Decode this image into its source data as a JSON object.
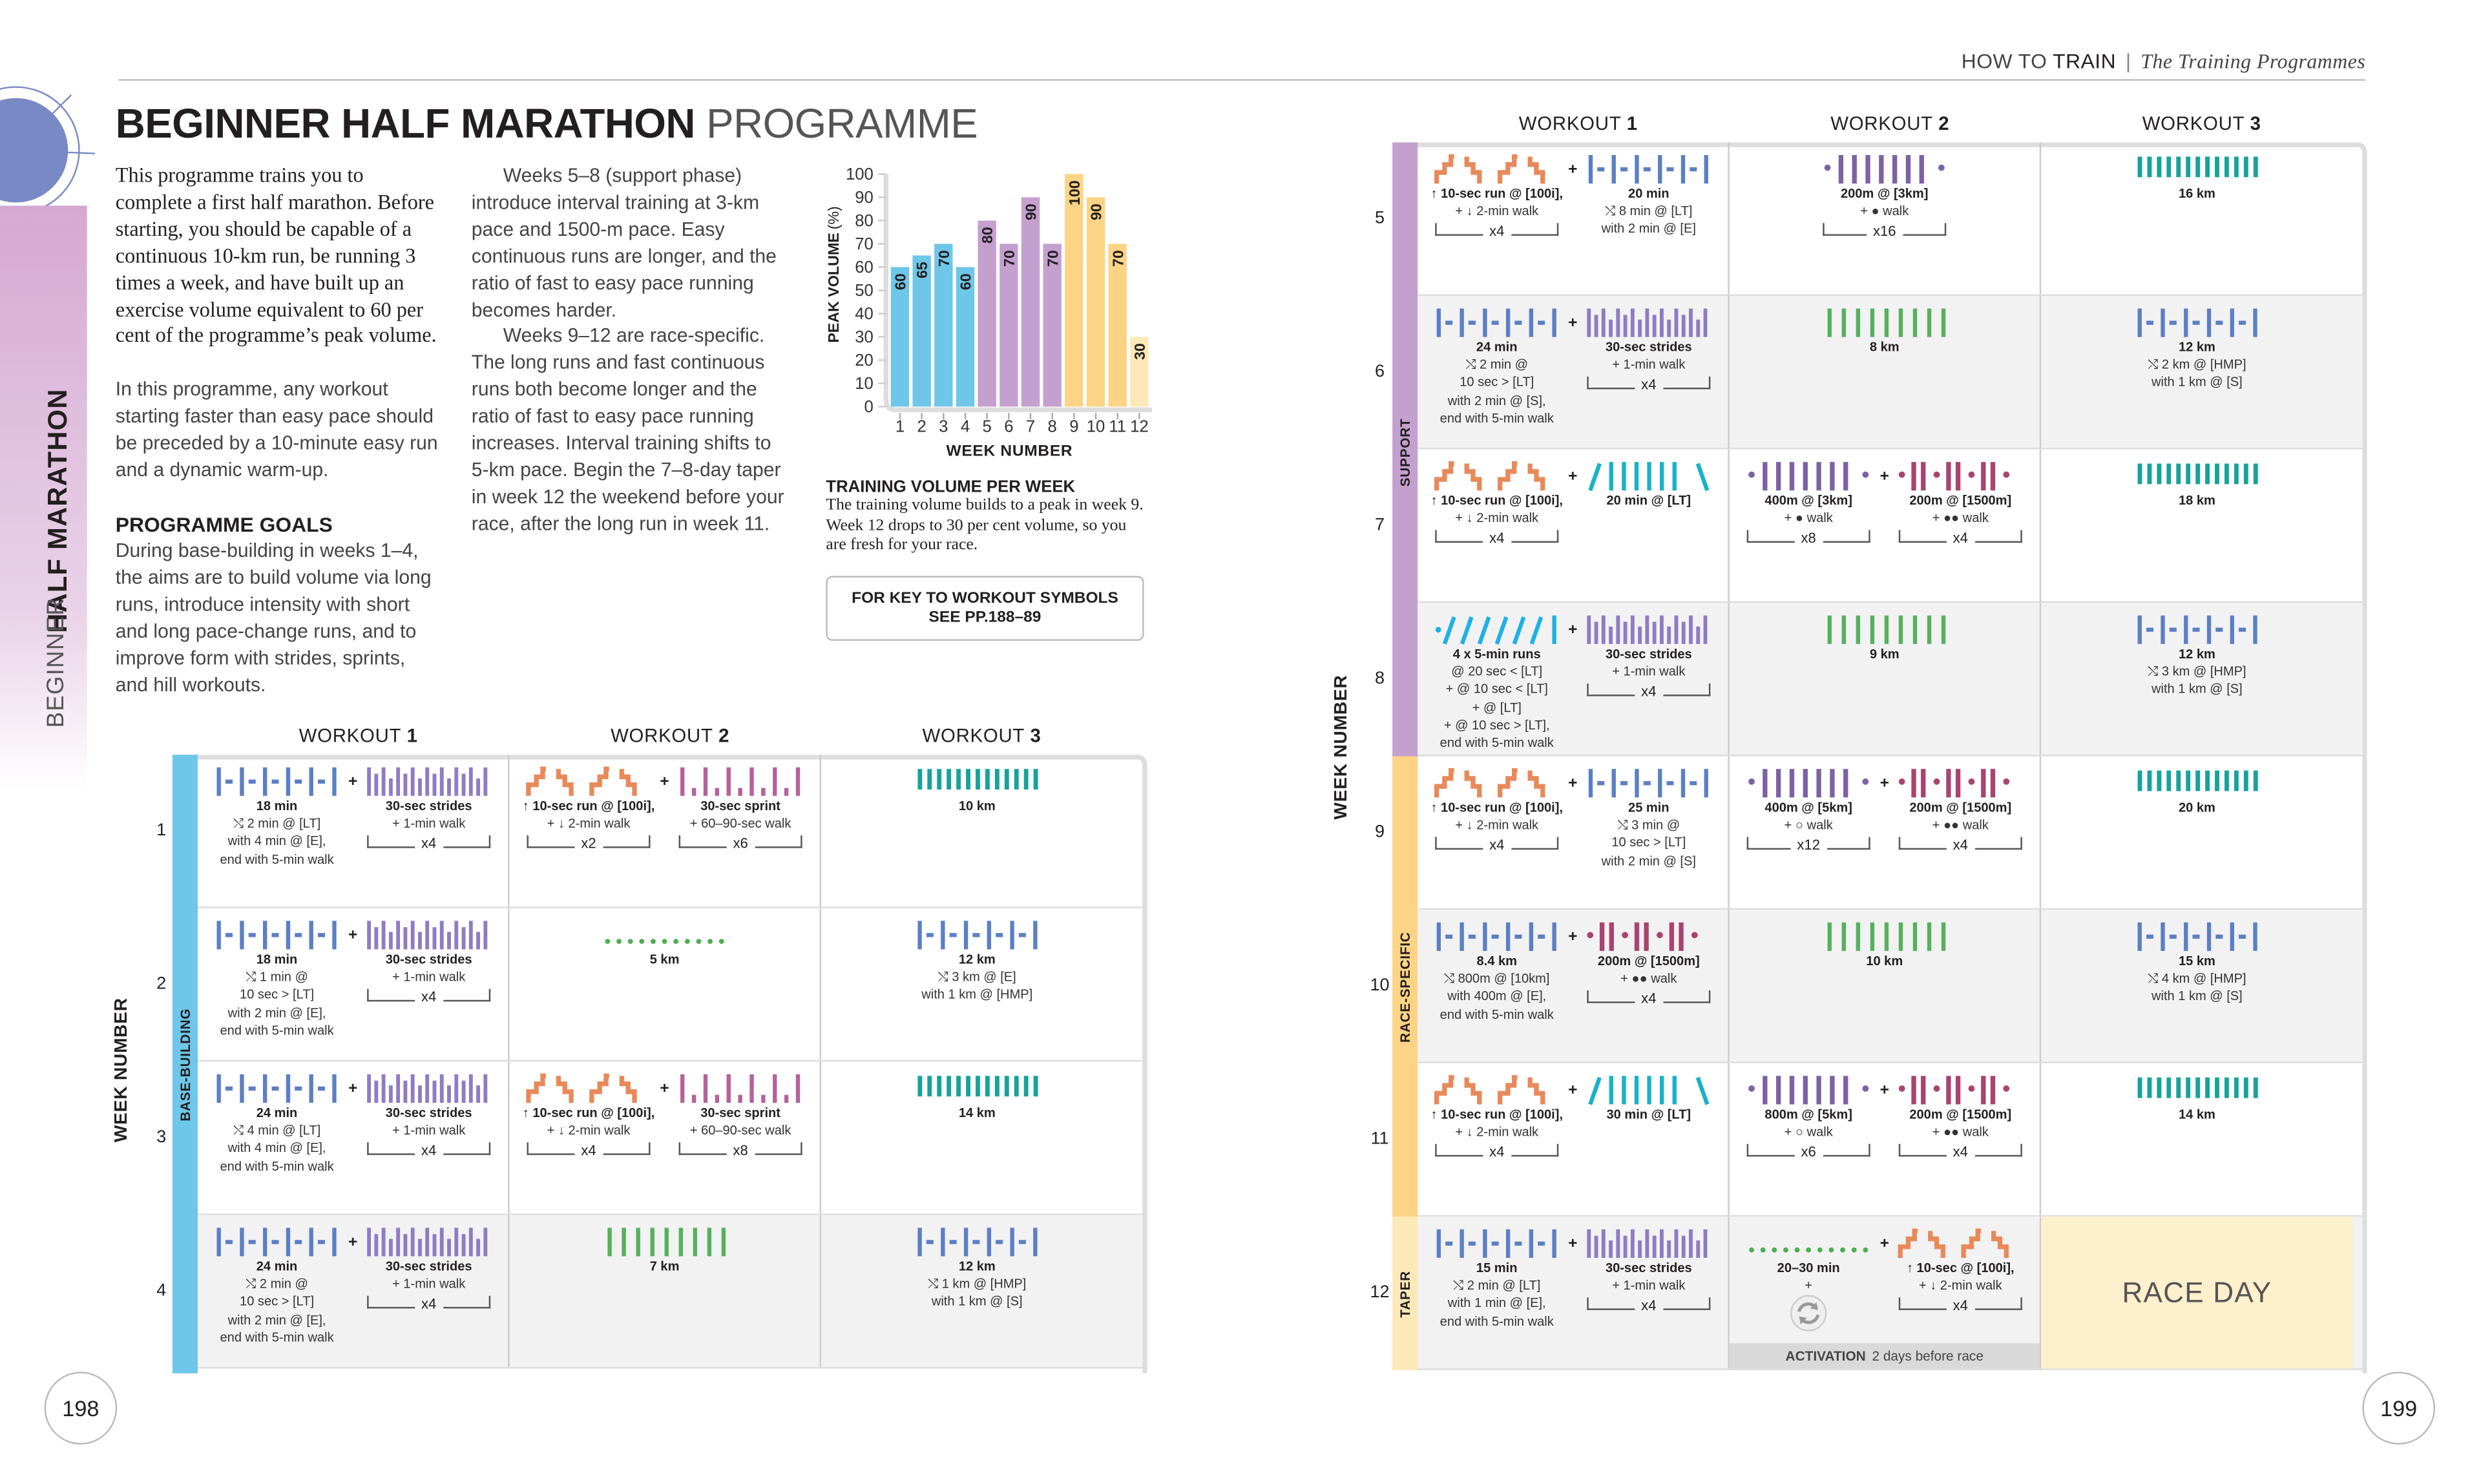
{
  "header": {
    "section": "HOW TO",
    "section_bold": "TRAIN",
    "subtitle": "The Training Programmes"
  },
  "side_tab": {
    "title": "HALF MARATHON",
    "level": "BEGINNER"
  },
  "title": {
    "bold": "BEGINNER HALF MARATHON",
    "light": "PROGRAMME"
  },
  "intro": {
    "lead": "This programme trains you to complete a first half marathon. Before starting, you should be capable of a continuous 10-km run, be running 3 times a week, and have built up an exercise volume equivalent to 60 per cent of the programme’s peak volume.",
    "warmup": "In this programme, any workout starting faster than easy pace should be preceded by a 10-minute easy run and a dynamic warm-up.",
    "goals_heading": "PROGRAMME GOALS",
    "goals_p1": "During base-building in weeks 1–4, the aims are to build volume via long runs, introduce intensity with short and long pace-change runs, and to improve form with strides, sprints, and hill workouts.",
    "goals_p2": "Weeks 5–8 (support phase) introduce interval training at 3-km pace and 1500-m pace. Easy continuous runs are longer, and the ratio of fast to easy pace running becomes harder.",
    "goals_p3": "Weeks 9–12 are race-specific. The long runs and fast continuous runs both become longer and the ratio of fast to easy pace running increases. Interval training shifts to 5-km pace. Begin the 7–8-day taper in week 12 the weekend before your race, after the long run in week 11."
  },
  "chart_data": {
    "type": "bar",
    "title": "",
    "xlabel": "WEEK NUMBER",
    "ylabel": "PEAK VOLUME",
    "ylabel_unit": "(%)",
    "ylim": [
      0,
      100
    ],
    "yticks": [
      0,
      10,
      20,
      30,
      40,
      50,
      60,
      70,
      80,
      90,
      100
    ],
    "categories": [
      "1",
      "2",
      "3",
      "4",
      "5",
      "6",
      "7",
      "8",
      "9",
      "10",
      "11",
      "12"
    ],
    "values": [
      60,
      65,
      70,
      60,
      80,
      70,
      90,
      70,
      100,
      90,
      70,
      30
    ],
    "bar_colors": [
      "#6ec6e8",
      "#6ec6e8",
      "#6ec6e8",
      "#6ec6e8",
      "#c4a0cf",
      "#c4a0cf",
      "#c4a0cf",
      "#c4a0cf",
      "#fdd485",
      "#fdd485",
      "#fdd485",
      "#fde9b8"
    ],
    "data_labels": true,
    "grid": false
  },
  "chart_caption": {
    "heading": "TRAINING VOLUME PER WEEK",
    "text": "The training volume builds to a peak in week 9. Week 12 drops to 30 per cent volume, so you are fresh for your race."
  },
  "key_box": {
    "line1": "FOR KEY TO WORKOUT SYMBOLS",
    "line2": "SEE PP.188–89"
  },
  "page_numbers": {
    "left": "198",
    "right": "199"
  },
  "colors": {
    "base": "#6ec6e8",
    "support": "#c4a0cf",
    "race": "#fdd485",
    "taper": "#fde9b8",
    "fartlek": "#5b7fc4",
    "strides": "#8e7cc3",
    "hills": "#e8895a",
    "sprints": "#b5619b",
    "easy": "#4caf50",
    "steady": "#56b05c",
    "long": "#16a39a",
    "intervals": "#7d62a3",
    "reps": "#a8446f",
    "tempo": "#17b2c9",
    "progression": "#1fb0e6"
  },
  "table_labels": {
    "workout": "WORKOUT",
    "week_number": "WEEK NUMBER"
  },
  "left_table": {
    "headers": [
      "1",
      "2",
      "3"
    ],
    "phases": [
      {
        "name": "BASE-BUILDING",
        "color": "#6ec6e8",
        "from": 1,
        "to": 4
      }
    ],
    "rows": [
      {
        "week": "1",
        "gray": false,
        "cells": [
          [
            {
              "icon": "fartlek",
              "lines": [
                "18 min",
                "⤭ 2 min @ [LT]",
                "with 4 min @ [E],",
                "end with 5-min walk"
              ]
            },
            {
              "icon": "strides",
              "lines": [
                "30-sec strides",
                "+ 1-min walk"
              ],
              "repeat": "x4"
            }
          ],
          [
            {
              "icon": "hills",
              "lines": [
                "↑ 10-sec run @ [100i],",
                "+ ↓ 2-min walk"
              ],
              "repeat": "x2"
            },
            {
              "icon": "sprints",
              "lines": [
                "30-sec sprint",
                "+ 60–90-sec walk"
              ],
              "repeat": "x6"
            }
          ],
          [
            {
              "icon": "long",
              "lines": [
                "10 km"
              ]
            }
          ]
        ]
      },
      {
        "week": "2",
        "gray": false,
        "cells": [
          [
            {
              "icon": "fartlek",
              "lines": [
                "18 min",
                "⤭ 1 min @",
                "10 sec > [LT]",
                "with 2 min @ [E],",
                "end with 5-min walk"
              ]
            },
            {
              "icon": "strides",
              "lines": [
                "30-sec strides",
                "+ 1-min walk"
              ],
              "repeat": "x4"
            }
          ],
          [
            {
              "icon": "easy",
              "lines": [
                "5 km"
              ]
            }
          ],
          [
            {
              "icon": "fartlek",
              "lines": [
                "12 km",
                "⤭ 3 km @ [E]",
                "with 1 km @ [HMP]"
              ]
            }
          ]
        ]
      },
      {
        "week": "3",
        "gray": false,
        "cells": [
          [
            {
              "icon": "fartlek",
              "lines": [
                "24 min",
                "⤭ 4 min @ [LT]",
                "with 4 min @ [E],",
                "end with 5-min walk"
              ]
            },
            {
              "icon": "strides",
              "lines": [
                "30-sec strides",
                "+ 1-min walk"
              ],
              "repeat": "x4"
            }
          ],
          [
            {
              "icon": "hills",
              "lines": [
                "↑ 10-sec run @ [100i],",
                "+ ↓ 2-min walk"
              ],
              "repeat": "x4"
            },
            {
              "icon": "sprints",
              "lines": [
                "30-sec sprint",
                "+ 60–90-sec walk"
              ],
              "repeat": "x8"
            }
          ],
          [
            {
              "icon": "long",
              "lines": [
                "14 km"
              ]
            }
          ]
        ]
      },
      {
        "week": "4",
        "gray": true,
        "cells": [
          [
            {
              "icon": "fartlek",
              "lines": [
                "24 min",
                "⤭ 2 min @",
                "10 sec > [LT]",
                "with 2 min @ [E],",
                "end with 5-min walk"
              ]
            },
            {
              "icon": "strides",
              "lines": [
                "30-sec strides",
                "+ 1-min walk"
              ],
              "repeat": "x4"
            }
          ],
          [
            {
              "icon": "steady",
              "lines": [
                "7 km"
              ]
            }
          ],
          [
            {
              "icon": "fartlek",
              "lines": [
                "12 km",
                "⤭ 1 km @ [HMP]",
                "with 1 km @ [S]"
              ]
            }
          ]
        ]
      }
    ]
  },
  "right_table": {
    "headers": [
      "1",
      "2",
      "3"
    ],
    "phases": [
      {
        "name": "SUPPORT",
        "color": "#c4a0cf",
        "from": 5,
        "to": 8
      },
      {
        "name": "RACE-SPECIFIC",
        "color": "#fdd485",
        "from": 9,
        "to": 11
      },
      {
        "name": "TAPER",
        "color": "#fde9b8",
        "from": 12,
        "to": 12
      }
    ],
    "rows": [
      {
        "week": "5",
        "gray": false,
        "cells": [
          [
            {
              "icon": "hills",
              "lines": [
                "↑ 10-sec run @ [100i],",
                "+ ↓ 2-min walk"
              ],
              "repeat": "x4"
            },
            {
              "icon": "fartlek",
              "lines": [
                "20 min",
                "⤭ 8 min @ [LT]",
                "with 2 min @ [E]"
              ]
            }
          ],
          [
            {
              "icon": "intervals",
              "lines": [
                "200m @ [3km]",
                "+ ● walk"
              ],
              "repeat": "x16"
            }
          ],
          [
            {
              "icon": "long",
              "lines": [
                "16 km"
              ]
            }
          ]
        ]
      },
      {
        "week": "6",
        "gray": true,
        "cells": [
          [
            {
              "icon": "fartlek",
              "lines": [
                "24 min",
                "⤭ 2 min @",
                "10 sec > [LT]",
                "with 2 min @ [S],",
                "end with 5-min walk"
              ]
            },
            {
              "icon": "strides",
              "lines": [
                "30-sec strides",
                "+ 1-min walk"
              ],
              "repeat": "x4"
            }
          ],
          [
            {
              "icon": "steady",
              "lines": [
                "8 km"
              ]
            }
          ],
          [
            {
              "icon": "fartlek",
              "lines": [
                "12 km",
                "⤭ 2 km @ [HMP]",
                "with 1 km @ [S]"
              ]
            }
          ]
        ]
      },
      {
        "week": "7",
        "gray": false,
        "cells": [
          [
            {
              "icon": "hills",
              "lines": [
                "↑ 10-sec run @ [100i],",
                "+ ↓ 2-min walk"
              ],
              "repeat": "x4"
            },
            {
              "icon": "tempo",
              "lines": [
                "20 min @ [LT]"
              ]
            }
          ],
          [
            {
              "icon": "intervals",
              "lines": [
                "400m @ [3km]",
                "+ ● walk"
              ],
              "repeat": "x8"
            },
            {
              "icon": "reps",
              "lines": [
                "200m @ [1500m]",
                "+ ●● walk"
              ],
              "repeat": "x4"
            }
          ],
          [
            {
              "icon": "long",
              "lines": [
                "18 km"
              ]
            }
          ]
        ]
      },
      {
        "week": "8",
        "gray": true,
        "cells": [
          [
            {
              "icon": "progression",
              "lines": [
                "4 x 5-min runs",
                "@ 20 sec < [LT]",
                "+ @ 10 sec < [LT]",
                "+ @ [LT]",
                "+ @ 10 sec > [LT],",
                "end with 5-min walk"
              ]
            },
            {
              "icon": "strides",
              "lines": [
                "30-sec strides",
                "+ 1-min walk"
              ],
              "repeat": "x4"
            }
          ],
          [
            {
              "icon": "steady",
              "lines": [
                "9 km"
              ]
            }
          ],
          [
            {
              "icon": "fartlek",
              "lines": [
                "12 km",
                "⤭ 3 km @ [HMP]",
                "with 1 km @ [S]"
              ]
            }
          ]
        ]
      },
      {
        "week": "9",
        "gray": false,
        "cells": [
          [
            {
              "icon": "hills",
              "lines": [
                "↑ 10-sec run @ [100i],",
                "+ ↓ 2-min walk"
              ],
              "repeat": "x4"
            },
            {
              "icon": "fartlek",
              "lines": [
                "25 min",
                "⤭ 3 min @",
                "10 sec > [LT]",
                "with 2 min @ [S]"
              ]
            }
          ],
          [
            {
              "icon": "intervals",
              "lines": [
                "400m @ [5km]",
                "+ ○ walk"
              ],
              "repeat": "x12"
            },
            {
              "icon": "reps",
              "lines": [
                "200m @ [1500m]",
                "+ ●● walk"
              ],
              "repeat": "x4"
            }
          ],
          [
            {
              "icon": "long",
              "lines": [
                "20 km"
              ]
            }
          ]
        ]
      },
      {
        "week": "10",
        "gray": true,
        "cells": [
          [
            {
              "icon": "fartlek",
              "lines": [
                "8.4 km",
                "⤭ 800m @ [10km]",
                "with 400m @ [E],",
                "end with 5-min walk"
              ]
            },
            {
              "icon": "reps",
              "lines": [
                "200m @ [1500m]",
                "+ ●● walk"
              ],
              "repeat": "x4"
            }
          ],
          [
            {
              "icon": "steady",
              "lines": [
                "10 km"
              ]
            }
          ],
          [
            {
              "icon": "fartlek",
              "lines": [
                "15 km",
                "⤭ 4 km @ [HMP]",
                "with 1 km @ [S]"
              ]
            }
          ]
        ]
      },
      {
        "week": "11",
        "gray": false,
        "cells": [
          [
            {
              "icon": "hills",
              "lines": [
                "↑ 10-sec run @ [100i],",
                "+ ↓ 2-min walk"
              ],
              "repeat": "x4"
            },
            {
              "icon": "tempo",
              "lines": [
                "30 min @ [LT]"
              ]
            }
          ],
          [
            {
              "icon": "intervals",
              "lines": [
                "800m @ [5km]",
                "+ ○ walk"
              ],
              "repeat": "x6"
            },
            {
              "icon": "reps",
              "lines": [
                "200m @ [1500m]",
                "+ ●● walk"
              ],
              "repeat": "x4"
            }
          ],
          [
            {
              "icon": "long",
              "lines": [
                "14 km"
              ]
            }
          ]
        ]
      },
      {
        "week": "12",
        "gray": true,
        "cells": [
          [
            {
              "icon": "fartlek",
              "lines": [
                "15 min",
                "⤭ 2 min @ [LT]",
                "with 1 min @ [E],",
                "end with 5-min walk"
              ]
            },
            {
              "icon": "strides",
              "lines": [
                "30-sec strides",
                "+ 1-min walk"
              ],
              "repeat": "x4"
            }
          ],
          [
            {
              "icon": "easy",
              "lines": [
                "20–30 min",
                "+"
              ],
              "extra_icon": "activation"
            },
            {
              "icon": "hills",
              "lines": [
                "↑ 10-sec @ [100i],",
                "+ ↓ 2-min walk"
              ],
              "repeat": "x4"
            }
          ],
          [
            {
              "race_day": "RACE DAY"
            }
          ]
        ],
        "activation": {
          "label": "ACTIVATION",
          "note": "2 days before race"
        }
      }
    ]
  }
}
